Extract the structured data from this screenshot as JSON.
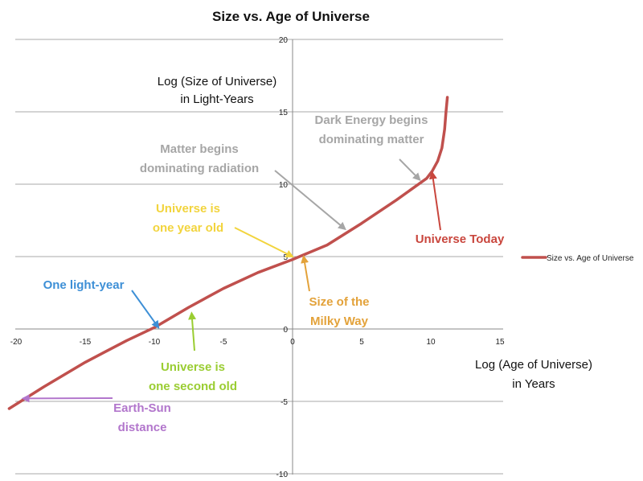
{
  "chart_data": {
    "type": "line",
    "title": "Size vs. Age of Universe",
    "ylabel_lines": [
      "Log (Size of Universe)",
      "in Light-Years"
    ],
    "xlabel_lines": [
      "Log (Age of Universe)",
      "in Years"
    ],
    "xlim": [
      -21,
      15
    ],
    "ylim": [
      -10,
      20
    ],
    "x_ticks": [
      -20,
      -15,
      -10,
      -5,
      0,
      5,
      10,
      15
    ],
    "y_ticks": [
      -10,
      -5,
      0,
      5,
      10,
      15,
      20
    ],
    "grid": "horizontal",
    "legend": {
      "position": "right",
      "entries": [
        "Size vs. Age of Universe"
      ]
    },
    "series": [
      {
        "name": "Size vs. Age of Universe",
        "color": "#c0504d",
        "x": [
          -20.5,
          -18,
          -15,
          -12,
          -10,
          -7.5,
          -5,
          -2.5,
          0,
          0.5,
          2.5,
          5,
          7.5,
          9.7,
          10.1,
          10.5,
          10.8,
          11.0,
          11.1,
          11.2
        ],
        "y": [
          -5.5,
          -4.0,
          -2.3,
          -0.8,
          0.1,
          1.5,
          2.8,
          3.9,
          4.8,
          5.0,
          5.8,
          7.3,
          8.9,
          10.4,
          10.9,
          11.6,
          12.5,
          13.8,
          15.0,
          16.0
        ]
      }
    ],
    "annotations": [
      {
        "lines": [
          "Dark Energy begins",
          "dominating matter"
        ],
        "color": "#a6a6a6",
        "point": [
          9.2,
          10.3
        ]
      },
      {
        "lines": [
          "Matter begins",
          "dominating radiation"
        ],
        "color": "#a6a6a6",
        "point": [
          3.8,
          6.9
        ]
      },
      {
        "lines": [
          "Universe is",
          "one year old"
        ],
        "color": "#f2d43d",
        "point": [
          0,
          5.0
        ]
      },
      {
        "lines": [
          "Universe Today"
        ],
        "color": "#c9463d",
        "point": [
          10.1,
          10.8
        ]
      },
      {
        "lines": [
          "One light-year"
        ],
        "color": "#3d8fd6",
        "point": [
          -9.7,
          0.1
        ]
      },
      {
        "lines": [
          "Size of the",
          "Milky Way"
        ],
        "color": "#e3a23a",
        "point": [
          0.8,
          5.0
        ]
      },
      {
        "lines": [
          "Universe is",
          "one second old"
        ],
        "color": "#9acd32",
        "point": [
          -7.3,
          1.1
        ]
      },
      {
        "lines": [
          "Earth-Sun",
          "distance"
        ],
        "color": "#b276cc",
        "point": [
          -19.5,
          -4.8
        ]
      }
    ]
  }
}
